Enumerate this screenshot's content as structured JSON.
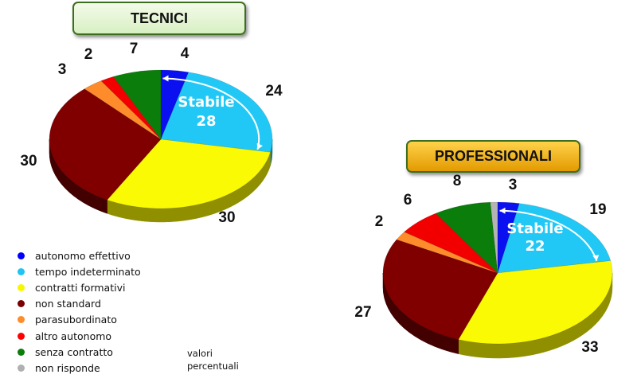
{
  "chart_data": [
    {
      "type": "pie",
      "title": "TECNICI",
      "categories": [
        "autonomo effettivo",
        "tempo indeterminato",
        "contratti formativi",
        "non standard",
        "parasubordinato",
        "altro autonomo",
        "senza contratto",
        "non risponde"
      ],
      "values": [
        4,
        24,
        30,
        30,
        3,
        2,
        7,
        0
      ],
      "labels": [
        "4",
        "24",
        "30",
        "30",
        "3",
        "2",
        "7",
        ""
      ],
      "annotation": {
        "text_line1": "Stabile",
        "text_line2": "28"
      }
    },
    {
      "type": "pie",
      "title": "PROFESSIONALI",
      "categories": [
        "autonomo effettivo",
        "tempo indeterminato",
        "contratti formativi",
        "non standard",
        "parasubordinato",
        "altro autonomo",
        "senza contratto",
        "non risponde"
      ],
      "values": [
        3,
        19,
        33,
        27,
        2,
        6,
        8,
        1
      ],
      "labels": [
        "3",
        "19",
        "33",
        "27",
        "2",
        "6",
        "8",
        ""
      ],
      "annotation": {
        "text_line1": "Stabile",
        "text_line2": "22"
      }
    }
  ],
  "colors": [
    "#0a10f0",
    "#22c8f5",
    "#fafa05",
    "#800000",
    "#ff8c2a",
    "#f20000",
    "#0a7d0a",
    "#b4b4b4"
  ],
  "side_colors": [
    "#05087a",
    "#137a96",
    "#8f8f00",
    "#420000",
    "#9a4f10",
    "#880000",
    "#043d04",
    "#707070"
  ],
  "legend": [
    {
      "label": "autonomo effettivo",
      "color": "#0000ff"
    },
    {
      "label": "tempo indeterminato",
      "color": "#1ec4f2"
    },
    {
      "label": "contratti formativi",
      "color": "#f7f700"
    },
    {
      "label": "non standard",
      "color": "#7a0000"
    },
    {
      "label": "parasubordinato",
      "color": "#ff8c2a"
    },
    {
      "label": "altro autonomo",
      "color": "#ff0000"
    },
    {
      "label": "senza contratto",
      "color": "#0a7d0a"
    },
    {
      "label": "non risponde",
      "color": "#b0b0b0"
    }
  ],
  "note": {
    "line1": "valori",
    "line2": "percentuali"
  }
}
